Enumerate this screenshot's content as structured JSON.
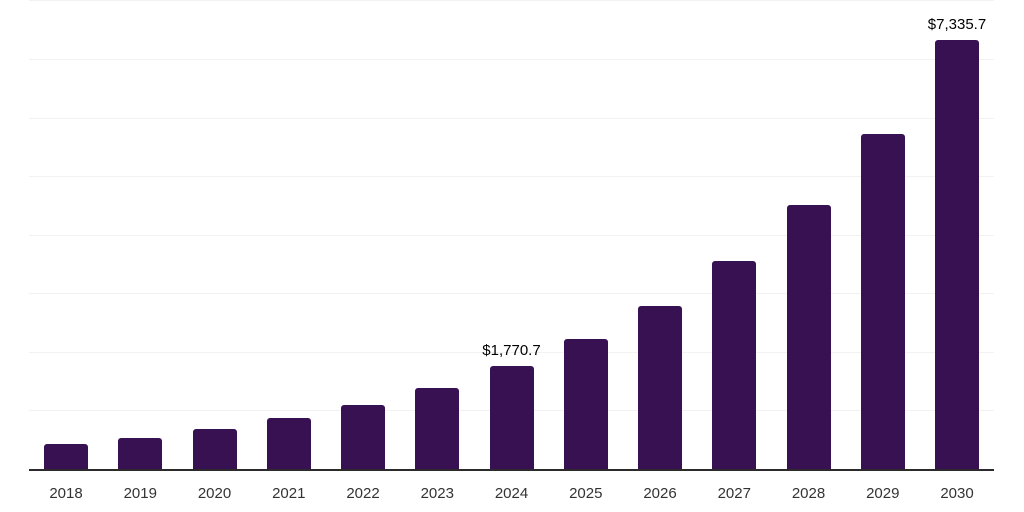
{
  "chart_data": {
    "type": "bar",
    "title": "",
    "xlabel": "",
    "ylabel": "",
    "categories": [
      "2018",
      "2019",
      "2020",
      "2021",
      "2022",
      "2023",
      "2024",
      "2025",
      "2026",
      "2027",
      "2028",
      "2029",
      "2030"
    ],
    "values": [
      440,
      540,
      700,
      885,
      1105,
      1395,
      1770.7,
      2245,
      2805,
      3560,
      4520,
      5735,
      7335.7
    ],
    "data_labels": [
      {
        "category": "2024",
        "text": "$1,770.7"
      },
      {
        "category": "2030",
        "text": "$7,335.7"
      }
    ],
    "ylim": [
      0,
      8000
    ],
    "gridline_step": 1000,
    "grid": true,
    "legend": false
  },
  "style": {
    "bar_color": "#371151",
    "axis_color": "#2b2b2b",
    "gridline_color": "#f2f2f2",
    "tick_label_color": "#333333",
    "value_label_color": "#000000",
    "background": "#ffffff"
  }
}
